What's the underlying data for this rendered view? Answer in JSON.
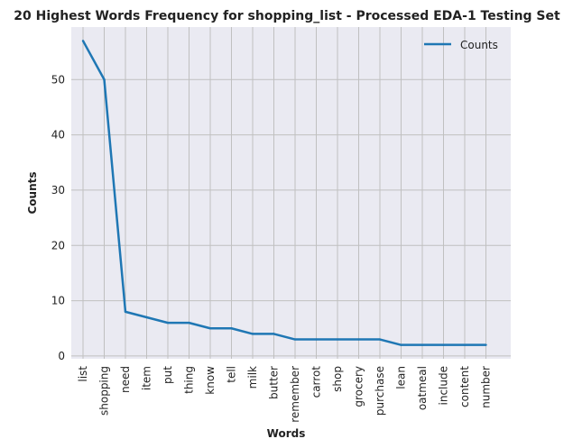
{
  "chart_data": {
    "type": "line",
    "title": "20 Highest Words Frequency for shopping_list - Processed EDA-1 Testing Set",
    "xlabel": "Words",
    "ylabel": "Counts",
    "categories": [
      "list",
      "shopping",
      "need",
      "item",
      "put",
      "thing",
      "know",
      "tell",
      "milk",
      "butter",
      "remember",
      "carrot",
      "shop",
      "grocery",
      "purchase",
      "lean",
      "oatmeal",
      "include",
      "content",
      "number"
    ],
    "series": [
      {
        "name": "Counts",
        "values": [
          57,
          50,
          8,
          7,
          6,
          6,
          5,
          5,
          4,
          4,
          3,
          3,
          3,
          3,
          3,
          2,
          2,
          2,
          2,
          2
        ]
      }
    ],
    "ylim": [
      -0.5,
      59.5
    ],
    "yticks": [
      0,
      10,
      20,
      30,
      40,
      50
    ],
    "grid": true,
    "legend": "top-right",
    "colors": {
      "line": "#1f77b4",
      "plot_bg": "#eaeaf2",
      "grid": "#c0c0c0"
    }
  }
}
